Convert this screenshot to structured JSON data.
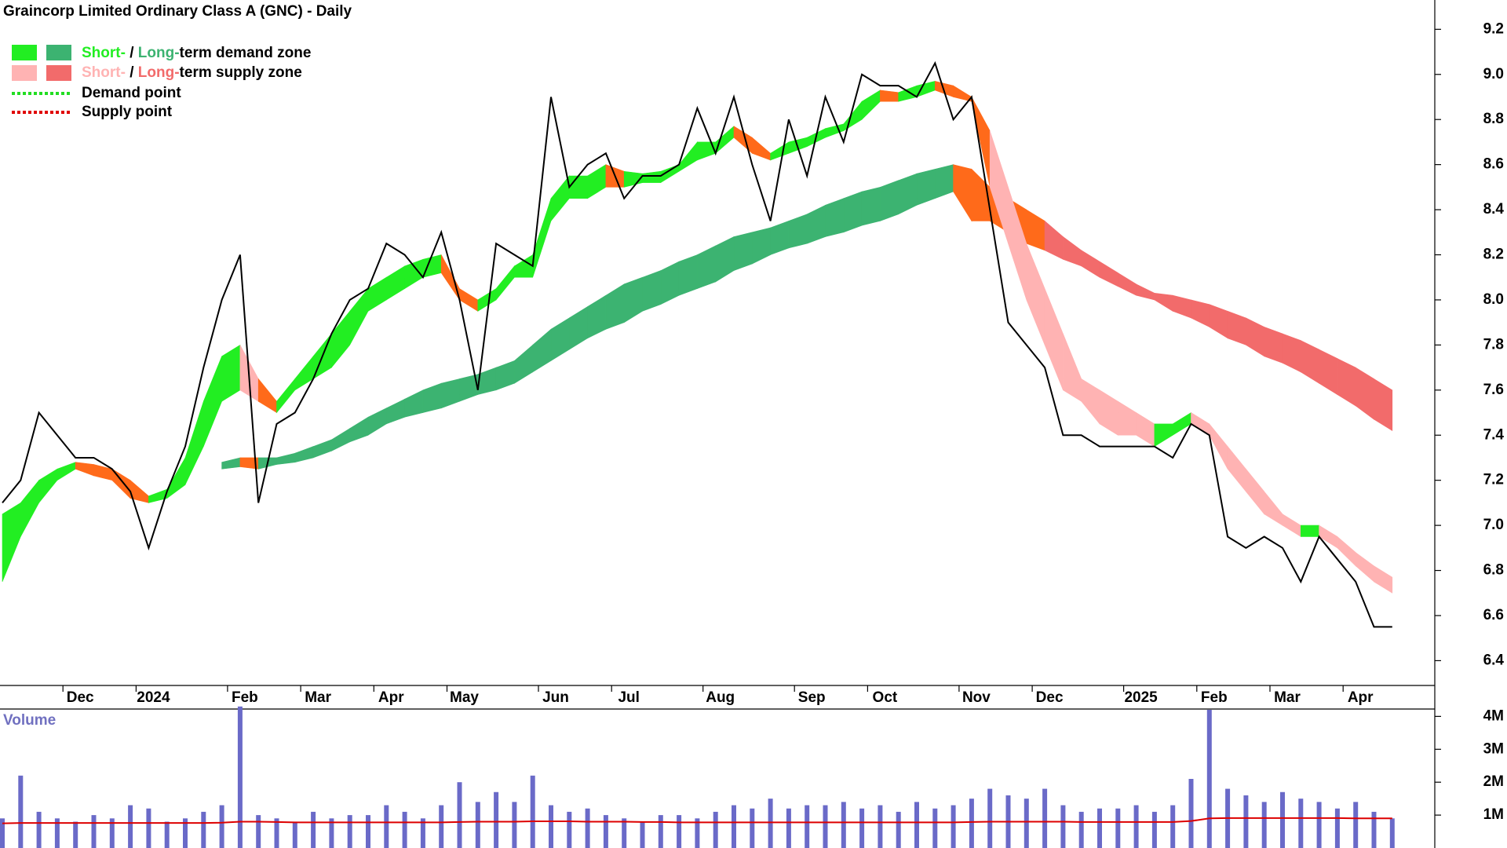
{
  "chart_data": {
    "type": "line",
    "title": "Graincorp Limited Ordinary Class A (GNC) - Daily",
    "legend": [
      {
        "short": "Short-",
        "sep": " / ",
        "long": "Long-",
        "rest": "term demand zone"
      },
      {
        "short": "Short-",
        "sep": " / ",
        "long": "Long-",
        "rest": "term supply zone"
      },
      {
        "label": "Demand point"
      },
      {
        "label": "Supply point"
      }
    ],
    "colors": {
      "demand_short": "#22ee22",
      "demand_long": "#3cb371",
      "supply_short": "#ffb3b3",
      "supply_long": "#f26b6b",
      "transition": "#ff6a1a",
      "demand_point": "#22dd22",
      "supply_point": "#e00000",
      "volume": "#6a6ac8",
      "volume_avg": "#dd0000",
      "price": "#000000"
    },
    "categories": [
      null,
      null,
      null,
      null,
      "Dec",
      null,
      null,
      null,
      "2024",
      null,
      null,
      null,
      null,
      "Feb",
      null,
      null,
      null,
      "Mar",
      null,
      null,
      null,
      "Apr",
      null,
      null,
      null,
      "May",
      null,
      null,
      null,
      null,
      "Jun",
      null,
      null,
      null,
      "Jul",
      null,
      null,
      null,
      null,
      "Aug",
      null,
      null,
      null,
      null,
      "Sep",
      null,
      null,
      null,
      "Oct",
      null,
      null,
      null,
      null,
      "Nov",
      null,
      null,
      null,
      "Dec",
      null,
      null,
      null,
      null,
      "2025",
      null,
      null,
      null,
      "Feb",
      null,
      null,
      null,
      "Mar",
      null,
      null,
      null,
      "Apr",
      null,
      null
    ],
    "close": [
      7.1,
      7.2,
      7.5,
      7.4,
      7.3,
      7.3,
      7.25,
      7.15,
      6.9,
      7.15,
      7.35,
      7.7,
      8.0,
      8.2,
      7.1,
      7.45,
      7.5,
      7.65,
      7.85,
      8.0,
      8.05,
      8.25,
      8.2,
      8.1,
      8.3,
      8.0,
      7.6,
      8.25,
      8.2,
      8.15,
      8.9,
      8.5,
      8.6,
      8.65,
      8.45,
      8.55,
      8.55,
      8.6,
      8.85,
      8.65,
      8.9,
      8.6,
      8.35,
      8.8,
      8.55,
      8.9,
      8.7,
      9.0,
      8.95,
      8.95,
      8.9,
      9.05,
      8.8,
      8.9,
      8.4,
      7.9,
      7.8,
      7.7,
      7.4,
      7.4,
      7.35,
      7.35,
      7.35,
      7.35,
      7.3,
      7.45,
      7.4,
      6.95,
      6.9,
      6.95,
      6.9,
      6.75,
      6.95,
      6.85,
      6.75,
      6.55,
      6.55
    ],
    "short_zone_low": [
      6.75,
      6.95,
      7.1,
      7.2,
      7.25,
      7.22,
      7.2,
      7.12,
      7.1,
      7.12,
      7.18,
      7.35,
      7.55,
      7.6,
      7.55,
      7.5,
      7.6,
      7.65,
      7.7,
      7.8,
      7.95,
      8.0,
      8.05,
      8.1,
      8.12,
      8.0,
      7.95,
      8.0,
      8.1,
      8.1,
      8.35,
      8.45,
      8.45,
      8.5,
      8.5,
      8.52,
      8.52,
      8.57,
      8.62,
      8.65,
      8.72,
      8.65,
      8.62,
      8.65,
      8.68,
      8.72,
      8.75,
      8.8,
      8.88,
      8.88,
      8.9,
      8.93,
      8.9,
      8.88,
      8.5,
      8.25,
      8.0,
      7.8,
      7.6,
      7.55,
      7.45,
      7.4,
      7.4,
      7.35,
      7.4,
      7.45,
      7.4,
      7.25,
      7.15,
      7.05,
      7.0,
      6.95,
      6.95,
      6.9,
      6.82,
      6.75,
      6.7
    ],
    "short_zone_high": [
      7.05,
      7.1,
      7.2,
      7.25,
      7.28,
      7.27,
      7.25,
      7.2,
      7.13,
      7.16,
      7.3,
      7.55,
      7.75,
      7.8,
      7.65,
      7.55,
      7.65,
      7.75,
      7.85,
      7.95,
      8.05,
      8.1,
      8.15,
      8.18,
      8.2,
      8.05,
      8.0,
      8.05,
      8.15,
      8.2,
      8.45,
      8.55,
      8.55,
      8.6,
      8.57,
      8.56,
      8.57,
      8.6,
      8.7,
      8.7,
      8.77,
      8.72,
      8.65,
      8.7,
      8.72,
      8.76,
      8.78,
      8.88,
      8.93,
      8.92,
      8.95,
      8.97,
      8.95,
      8.9,
      8.75,
      8.5,
      8.25,
      8.05,
      7.85,
      7.65,
      7.6,
      7.55,
      7.5,
      7.45,
      7.45,
      7.5,
      7.45,
      7.35,
      7.25,
      7.15,
      7.05,
      7.0,
      7.0,
      6.95,
      6.88,
      6.82,
      6.77
    ],
    "long_zone_low": [
      null,
      null,
      null,
      null,
      null,
      null,
      null,
      null,
      null,
      null,
      null,
      null,
      7.25,
      7.26,
      7.25,
      7.27,
      7.28,
      7.3,
      7.33,
      7.37,
      7.4,
      7.45,
      7.48,
      7.5,
      7.52,
      7.55,
      7.58,
      7.6,
      7.63,
      7.68,
      7.73,
      7.78,
      7.83,
      7.87,
      7.9,
      7.95,
      7.98,
      8.02,
      8.05,
      8.08,
      8.13,
      8.16,
      8.2,
      8.23,
      8.25,
      8.28,
      8.3,
      8.33,
      8.35,
      8.38,
      8.42,
      8.45,
      8.48,
      8.35,
      8.35,
      8.3,
      8.25,
      8.22,
      8.18,
      8.15,
      8.1,
      8.06,
      8.02,
      8.0,
      7.95,
      7.92,
      7.88,
      7.83,
      7.8,
      7.75,
      7.72,
      7.68,
      7.63,
      7.58,
      7.53,
      7.47,
      7.42
    ],
    "long_zone_high": [
      null,
      null,
      null,
      null,
      null,
      null,
      null,
      null,
      null,
      null,
      null,
      null,
      7.28,
      7.3,
      7.3,
      7.3,
      7.32,
      7.35,
      7.38,
      7.43,
      7.48,
      7.52,
      7.56,
      7.6,
      7.63,
      7.65,
      7.67,
      7.7,
      7.73,
      7.8,
      7.87,
      7.92,
      7.97,
      8.02,
      8.07,
      8.1,
      8.13,
      8.17,
      8.2,
      8.24,
      8.28,
      8.3,
      8.32,
      8.35,
      8.38,
      8.42,
      8.45,
      8.48,
      8.5,
      8.53,
      8.56,
      8.58,
      8.6,
      8.58,
      8.5,
      8.45,
      8.4,
      8.35,
      8.28,
      8.22,
      8.17,
      8.12,
      8.07,
      8.03,
      8.02,
      8.0,
      7.98,
      7.95,
      7.92,
      7.88,
      7.85,
      7.82,
      7.78,
      7.74,
      7.7,
      7.65,
      7.6
    ],
    "ylim": [
      6.29,
      9.33
    ],
    "yticks": [
      6.4,
      6.6,
      6.8,
      {
        "value": 7,
        "label": "7.0"
      },
      7.2,
      7.4,
      7.6,
      7.8,
      {
        "value": 8,
        "label": "8.0"
      },
      8.2,
      8.4,
      8.6,
      8.8,
      {
        "value": 9,
        "label": "9.0"
      },
      9.2
    ],
    "volume_label": "Volume",
    "volume": [
      900000,
      2200000,
      1100000,
      900000,
      800000,
      1000000,
      900000,
      1300000,
      1200000,
      800000,
      900000,
      1100000,
      1300000,
      4300000,
      1000000,
      900000,
      800000,
      1100000,
      900000,
      1000000,
      1000000,
      1300000,
      1100000,
      900000,
      1300000,
      2000000,
      1400000,
      1700000,
      1400000,
      2200000,
      1300000,
      1100000,
      1200000,
      1000000,
      900000,
      800000,
      1000000,
      1000000,
      900000,
      1100000,
      1300000,
      1200000,
      1500000,
      1200000,
      1300000,
      1300000,
      1400000,
      1200000,
      1300000,
      1100000,
      1400000,
      1200000,
      1300000,
      1500000,
      1800000,
      1600000,
      1500000,
      1800000,
      1300000,
      1100000,
      1200000,
      1200000,
      1300000,
      1100000,
      1300000,
      2100000,
      4200000,
      1800000,
      1600000,
      1400000,
      1700000,
      1500000,
      1400000,
      1200000,
      1400000,
      1100000,
      900000
    ],
    "volume_avg": [
      750000,
      760000,
      760000,
      760000,
      760000,
      760000,
      760000,
      760000,
      760000,
      760000,
      760000,
      760000,
      770000,
      800000,
      800000,
      790000,
      780000,
      780000,
      780000,
      780000,
      780000,
      780000,
      780000,
      780000,
      780000,
      790000,
      800000,
      800000,
      800000,
      810000,
      810000,
      810000,
      800000,
      800000,
      800000,
      790000,
      790000,
      780000,
      780000,
      780000,
      780000,
      780000,
      780000,
      780000,
      780000,
      780000,
      780000,
      780000,
      780000,
      780000,
      780000,
      780000,
      780000,
      790000,
      800000,
      800000,
      800000,
      800000,
      800000,
      790000,
      790000,
      790000,
      790000,
      790000,
      790000,
      820000,
      900000,
      910000,
      910000,
      910000,
      910000,
      910000,
      910000,
      910000,
      900000,
      900000,
      900000
    ],
    "vlim": [
      0,
      4200000
    ],
    "vticks": [
      {
        "value": 1000000,
        "label": "1M"
      },
      {
        "value": 2000000,
        "label": "2M"
      },
      {
        "value": 3000000,
        "label": "3M"
      },
      {
        "value": 4000000,
        "label": "4M"
      }
    ]
  }
}
